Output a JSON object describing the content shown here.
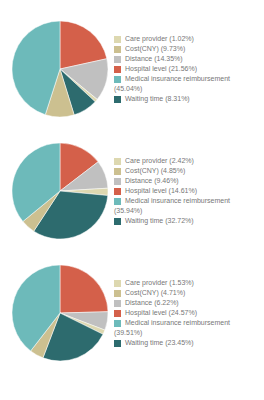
{
  "chart_data": [
    {
      "type": "pie",
      "categories": [
        "Hospital level (21.56%)",
        "Distance (14.35%)",
        "Care provider (1.02%)",
        "Waiting time (8.31%)",
        "Cost(CNY) (9.73%)",
        "Medical insurance reimbursement (45.04%)"
      ],
      "values": [
        21.56,
        14.35,
        1.02,
        8.31,
        9.73,
        45.04
      ],
      "colors": [
        "#D4604A",
        "#C0C0C0",
        "#DDD8B0",
        "#2D6B6E",
        "#CCC090",
        "#6DBABA"
      ],
      "legend": "right"
    },
    {
      "type": "pie",
      "categories": [
        "Hospital level (14.61%)",
        "Distance (9.46%)",
        "Care provider (2.42%)",
        "Waiting time (32.72%)",
        "Cost(CNY) (4.85%)",
        "Medical insurance reimbursement (35.94%)"
      ],
      "values": [
        14.61,
        9.46,
        2.42,
        32.72,
        4.85,
        35.94
      ],
      "colors": [
        "#D4604A",
        "#C0C0C0",
        "#DDD8B0",
        "#2D6B6E",
        "#CCC090",
        "#6DBABA"
      ],
      "legend": "right"
    },
    {
      "type": "pie",
      "categories": [
        "Hospital level (24.57%)",
        "Distance (6.22%)",
        "Care provider (1.53%)",
        "Waiting time (23.45%)",
        "Cost(CNY) (4.71%)",
        "Medical insurance reimbursement (39.51%)"
      ],
      "values": [
        24.57,
        6.22,
        1.53,
        23.45,
        4.71,
        39.51
      ],
      "colors": [
        "#D4604A",
        "#C0C0C0",
        "#DDD8B0",
        "#2D6B6E",
        "#CCC090",
        "#6DBABA"
      ],
      "legend": "right"
    }
  ]
}
